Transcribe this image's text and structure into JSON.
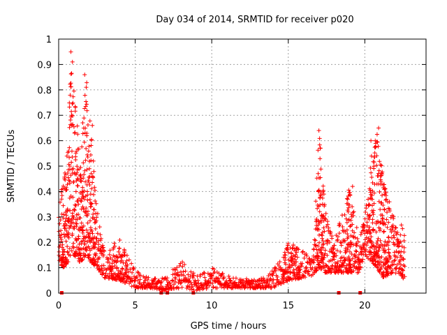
{
  "chart_data": {
    "type": "scatter",
    "title": "Day 034 of 2014, SRMTID for receiver p020",
    "xlabel": "GPS time / hours",
    "ylabel": "SRMTID / TECUs",
    "xlim": [
      0,
      24
    ],
    "ylim": [
      0,
      1
    ],
    "xticks": [
      0,
      5,
      10,
      15,
      20
    ],
    "xtick_labels": [
      "0",
      "5",
      "10",
      "15",
      "20"
    ],
    "yticks": [
      0,
      0.1,
      0.2,
      0.3,
      0.4,
      0.5,
      0.6,
      0.7,
      0.8,
      0.9,
      1
    ],
    "ytick_labels": [
      "0",
      "0.1",
      "0.2",
      "0.3",
      "0.4",
      "0.5",
      "0.6",
      "0.7",
      "0.8",
      "0.9",
      "1"
    ],
    "grid": true,
    "marker": "+",
    "color": "#ff0000",
    "series": [
      {
        "name": "SRMTID",
        "envelope": [
          {
            "x": 0.0,
            "low": 0.1,
            "high": 0.33
          },
          {
            "x": 0.3,
            "low": 0.1,
            "high": 0.45
          },
          {
            "x": 0.6,
            "low": 0.12,
            "high": 0.6
          },
          {
            "x": 0.8,
            "low": 0.15,
            "high": 0.95
          },
          {
            "x": 1.0,
            "low": 0.15,
            "high": 0.8
          },
          {
            "x": 1.4,
            "low": 0.12,
            "high": 0.55
          },
          {
            "x": 1.8,
            "low": 0.15,
            "high": 0.86
          },
          {
            "x": 2.1,
            "low": 0.12,
            "high": 0.66
          },
          {
            "x": 2.5,
            "low": 0.1,
            "high": 0.35
          },
          {
            "x": 3.0,
            "low": 0.06,
            "high": 0.16
          },
          {
            "x": 4.0,
            "low": 0.05,
            "high": 0.22
          },
          {
            "x": 5.0,
            "low": 0.02,
            "high": 0.09
          },
          {
            "x": 6.0,
            "low": 0.02,
            "high": 0.06
          },
          {
            "x": 7.0,
            "low": 0.01,
            "high": 0.06
          },
          {
            "x": 8.0,
            "low": 0.02,
            "high": 0.14
          },
          {
            "x": 9.0,
            "low": 0.01,
            "high": 0.07
          },
          {
            "x": 10.0,
            "low": 0.02,
            "high": 0.1
          },
          {
            "x": 11.0,
            "low": 0.02,
            "high": 0.07
          },
          {
            "x": 12.0,
            "low": 0.02,
            "high": 0.06
          },
          {
            "x": 13.0,
            "low": 0.02,
            "high": 0.05
          },
          {
            "x": 14.0,
            "low": 0.02,
            "high": 0.09
          },
          {
            "x": 15.0,
            "low": 0.05,
            "high": 0.2
          },
          {
            "x": 16.0,
            "low": 0.06,
            "high": 0.17
          },
          {
            "x": 16.6,
            "low": 0.07,
            "high": 0.13
          },
          {
            "x": 17.0,
            "low": 0.1,
            "high": 0.64
          },
          {
            "x": 17.4,
            "low": 0.08,
            "high": 0.35
          },
          {
            "x": 18.0,
            "low": 0.08,
            "high": 0.2
          },
          {
            "x": 19.0,
            "low": 0.08,
            "high": 0.42
          },
          {
            "x": 19.6,
            "low": 0.08,
            "high": 0.22
          },
          {
            "x": 20.0,
            "low": 0.15,
            "high": 0.3
          },
          {
            "x": 20.5,
            "low": 0.12,
            "high": 0.58
          },
          {
            "x": 20.8,
            "low": 0.1,
            "high": 0.65
          },
          {
            "x": 21.2,
            "low": 0.06,
            "high": 0.45
          },
          {
            "x": 21.8,
            "low": 0.08,
            "high": 0.32
          },
          {
            "x": 22.3,
            "low": 0.07,
            "high": 0.28
          },
          {
            "x": 22.6,
            "low": 0.05,
            "high": 0.25
          }
        ],
        "notable_points": [
          {
            "x": 0.8,
            "y": 0.95
          },
          {
            "x": 0.9,
            "y": 0.91
          },
          {
            "x": 1.7,
            "y": 0.86
          },
          {
            "x": 1.8,
            "y": 0.81
          },
          {
            "x": 2.2,
            "y": 0.66
          },
          {
            "x": 17.0,
            "y": 0.64
          },
          {
            "x": 17.1,
            "y": 0.57
          },
          {
            "x": 19.2,
            "y": 0.42
          },
          {
            "x": 20.9,
            "y": 0.65
          },
          {
            "x": 20.4,
            "y": 0.6
          }
        ],
        "zero_points": [
          0.2,
          6.7,
          7.1,
          8.8,
          18.3,
          19.7
        ]
      }
    ]
  }
}
